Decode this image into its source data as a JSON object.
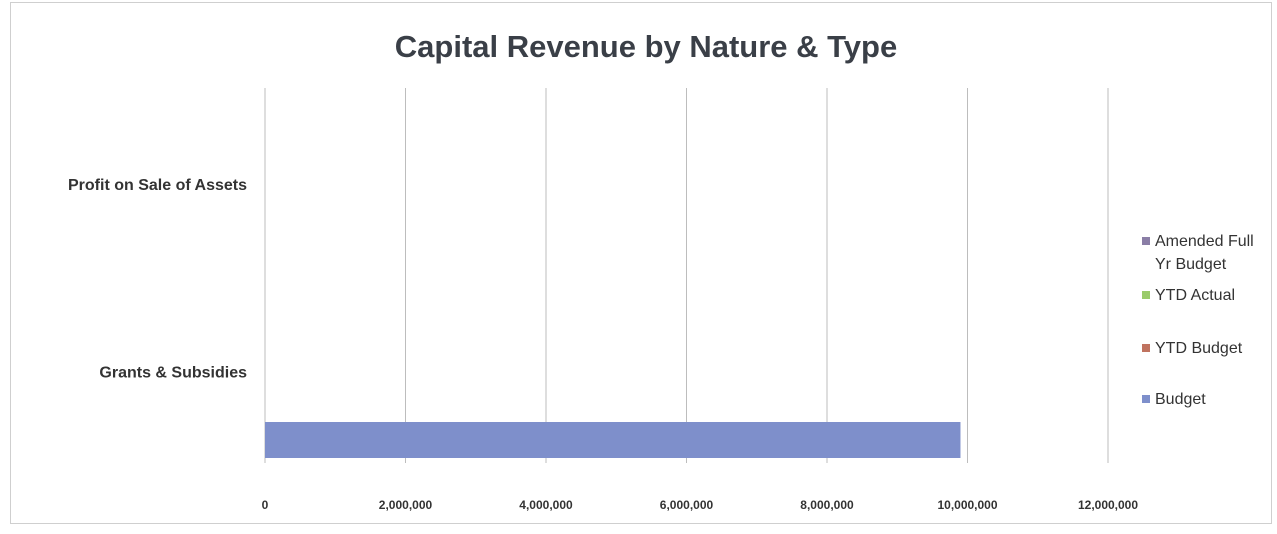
{
  "chart_data": {
    "type": "bar",
    "orientation": "horizontal",
    "title": "Capital Revenue by Nature & Type",
    "categories": [
      "Grants & Subsidies",
      "Profit on Sale of Assets"
    ],
    "series": [
      {
        "name": "Budget",
        "color": "#7E8FCB",
        "values": [
          9900000,
          0
        ]
      },
      {
        "name": "YTD Budget",
        "color": "#C0735F",
        "values": [
          0,
          0
        ]
      },
      {
        "name": "YTD Actual",
        "color": "#9ACB6A",
        "values": [
          0,
          0
        ]
      },
      {
        "name": "Amended Full Yr Budget",
        "color": "#8A7EA6",
        "values": [
          0,
          0
        ]
      }
    ],
    "xlim": [
      0,
      12000000
    ],
    "x_ticks": [
      0,
      2000000,
      4000000,
      6000000,
      8000000,
      10000000,
      12000000
    ],
    "x_tick_labels": [
      "0",
      "2,000,000",
      "4,000,000",
      "6,000,000",
      "8,000,000",
      "10,000,000",
      "12,000,000"
    ],
    "grid": "vertical",
    "legend_position": "right",
    "legend_labels": [
      {
        "series": "Amended Full Yr Budget",
        "lines": [
          "Amended Full",
          "Yr Budget"
        ]
      },
      {
        "series": "YTD Actual",
        "lines": [
          "YTD Actual"
        ]
      },
      {
        "series": "YTD Budget",
        "lines": [
          "YTD Budget"
        ]
      },
      {
        "series": "Budget",
        "lines": [
          "Budget"
        ]
      }
    ]
  }
}
